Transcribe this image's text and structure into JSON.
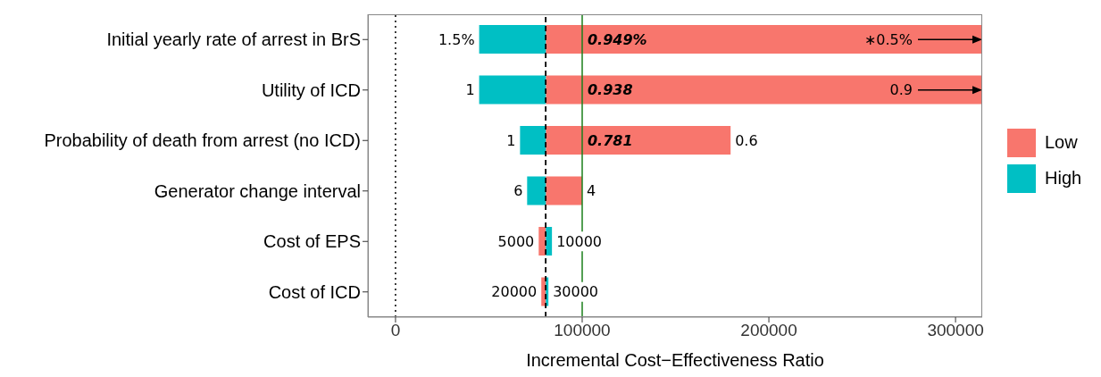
{
  "chart_data": {
    "type": "bar",
    "orientation": "horizontal",
    "xlabel": "Incremental Cost−Effectiveness Ratio",
    "categories": [
      "Initial yearly rate of arrest in BrS",
      "Utility of ICD",
      "Probability of death from arrest (no ICD)",
      "Generator change interval",
      "Cost of EPS",
      "Cost of ICD"
    ],
    "series": [
      {
        "name": "Low",
        "color": "#f8766d",
        "base": [
          80500,
          80500,
          80500,
          80500,
          80500,
          80500
        ],
        "values": [
          233800,
          233800,
          99000,
          19500,
          -3800,
          -2400
        ]
      },
      {
        "name": "High",
        "color": "#00bfc4",
        "base": [
          80500,
          80500,
          80500,
          80500,
          80500,
          80500
        ],
        "values": [
          -35700,
          -35700,
          -13800,
          -10000,
          3300,
          1400
        ]
      }
    ],
    "xlim": [
      -14800,
      314300
    ],
    "xticks": [
      0,
      100000,
      200000,
      300000
    ],
    "ref_lines": [
      {
        "axis": "x",
        "value": 0,
        "color": "#000000",
        "line_style": "dotted"
      },
      {
        "axis": "x",
        "value": 80500,
        "color": "#000000",
        "line_style": "dashed"
      },
      {
        "axis": "x",
        "value": 100000,
        "color": "#1a7f1a",
        "line_style": "solid"
      }
    ],
    "annotations": [
      {
        "text": "0.949%",
        "x": 100000,
        "y": "Initial yearly rate of arrest in BrS"
      },
      {
        "text": "0.938",
        "x": 100000,
        "y": "Utility of ICD"
      },
      {
        "text": "0.781",
        "x": 100000,
        "y": "Probability of death from arrest (no ICD)"
      },
      "∗0.5%",
      "0.9",
      {
        "text": "0.6",
        "x": 179500,
        "y": "Probability of death from arrest (no ICD)"
      },
      {
        "text": "4",
        "x": 100000,
        "y": "Generator change interval"
      },
      {
        "text": "5000",
        "x": 76700,
        "y": "Cost of EPS"
      },
      {
        "text": "20000",
        "x": 78100,
        "y": "Cost of ICD"
      },
      {
        "text": "1.5%",
        "x": 44800,
        "y": "Initial yearly rate of arrest in BrS"
      },
      {
        "text": "1",
        "x": 44800,
        "y": "Utility of ICD"
      },
      {
        "text": "1",
        "x": 66700,
        "y": "Probability of death from arrest (no ICD)"
      },
      {
        "text": "6",
        "x": 70500,
        "y": "Generator change interval"
      },
      {
        "text": "10000",
        "x": 83800,
        "y": "Cost of EPS"
      },
      {
        "text": "30000",
        "x": 81900,
        "y": "Cost of ICD"
      }
    ],
    "grid": false,
    "legend": "right"
  }
}
